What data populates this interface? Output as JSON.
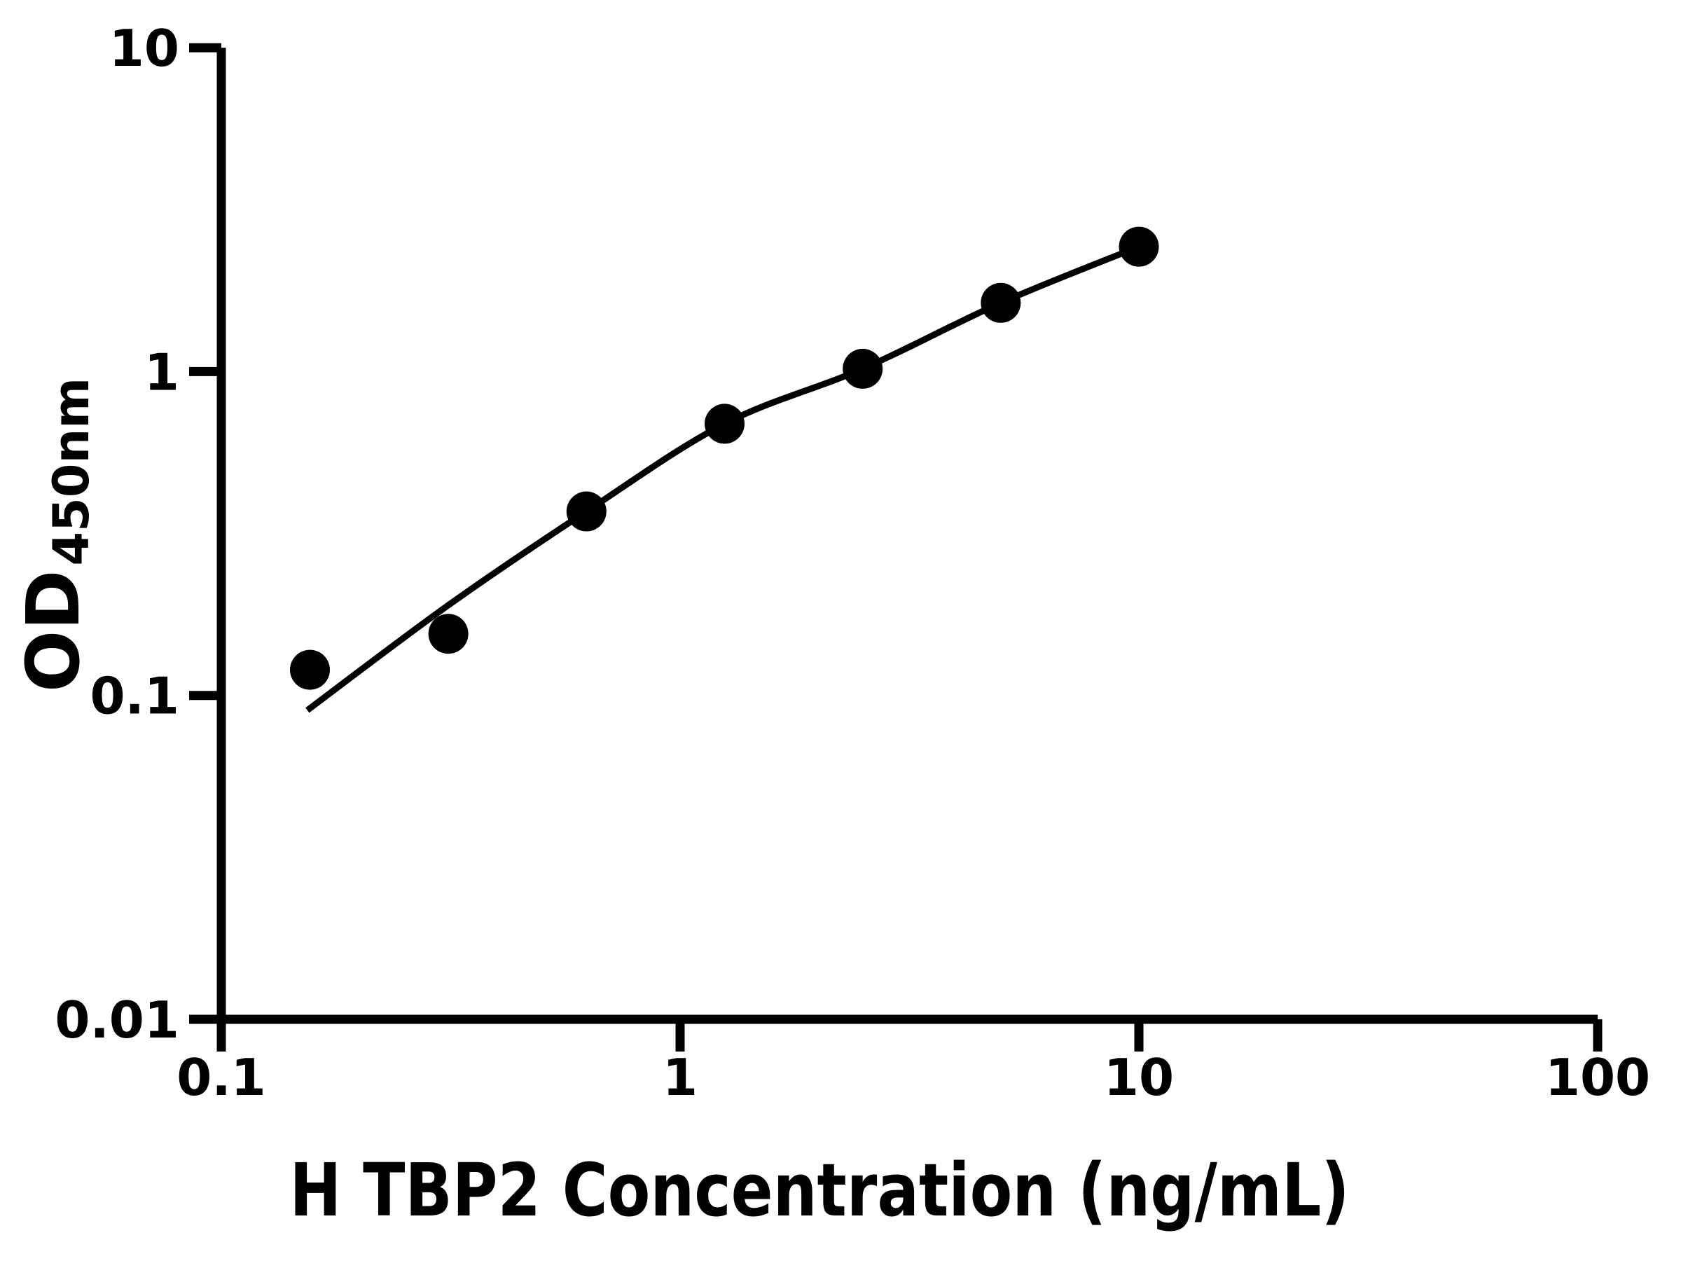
{
  "figure": {
    "background": "#ffffff",
    "ink_color": "#000000"
  },
  "chart_data": {
    "type": "scatter",
    "title": "",
    "xlabel": "H TBP2 Concentration (ng/mL)",
    "ylabel_main": "OD",
    "ylabel_sub": "450nm",
    "x_scale": "log",
    "y_scale": "log",
    "xlim": [
      0.1,
      100
    ],
    "ylim": [
      0.01,
      10
    ],
    "grid": "off",
    "legend": "none",
    "x_ticks": [
      {
        "value": 0.1,
        "label": "0.1"
      },
      {
        "value": 1,
        "label": "1"
      },
      {
        "value": 10,
        "label": "10"
      },
      {
        "value": 100,
        "label": "100"
      }
    ],
    "y_ticks": [
      {
        "value": 0.01,
        "label": "0.01"
      },
      {
        "value": 0.1,
        "label": "0.1"
      },
      {
        "value": 1,
        "label": "1"
      },
      {
        "value": 10,
        "label": "10"
      }
    ],
    "series": [
      {
        "name": "standard-points",
        "marker": "circle",
        "marker_color": "#000000",
        "x": [
          0.156,
          0.3125,
          0.625,
          1.25,
          2.5,
          5,
          10
        ],
        "y": [
          0.12,
          0.155,
          0.37,
          0.69,
          1.02,
          1.63,
          2.43
        ]
      }
    ],
    "fit_curve": {
      "name": "four-parameter-logistic-fit",
      "line_color": "#000000",
      "points": [
        [
          0.154,
          0.09
        ],
        [
          0.3125,
          0.19
        ],
        [
          0.625,
          0.37
        ],
        [
          1.25,
          0.69
        ],
        [
          2.5,
          1.02
        ],
        [
          5,
          1.63
        ],
        [
          10,
          2.43
        ]
      ]
    }
  }
}
